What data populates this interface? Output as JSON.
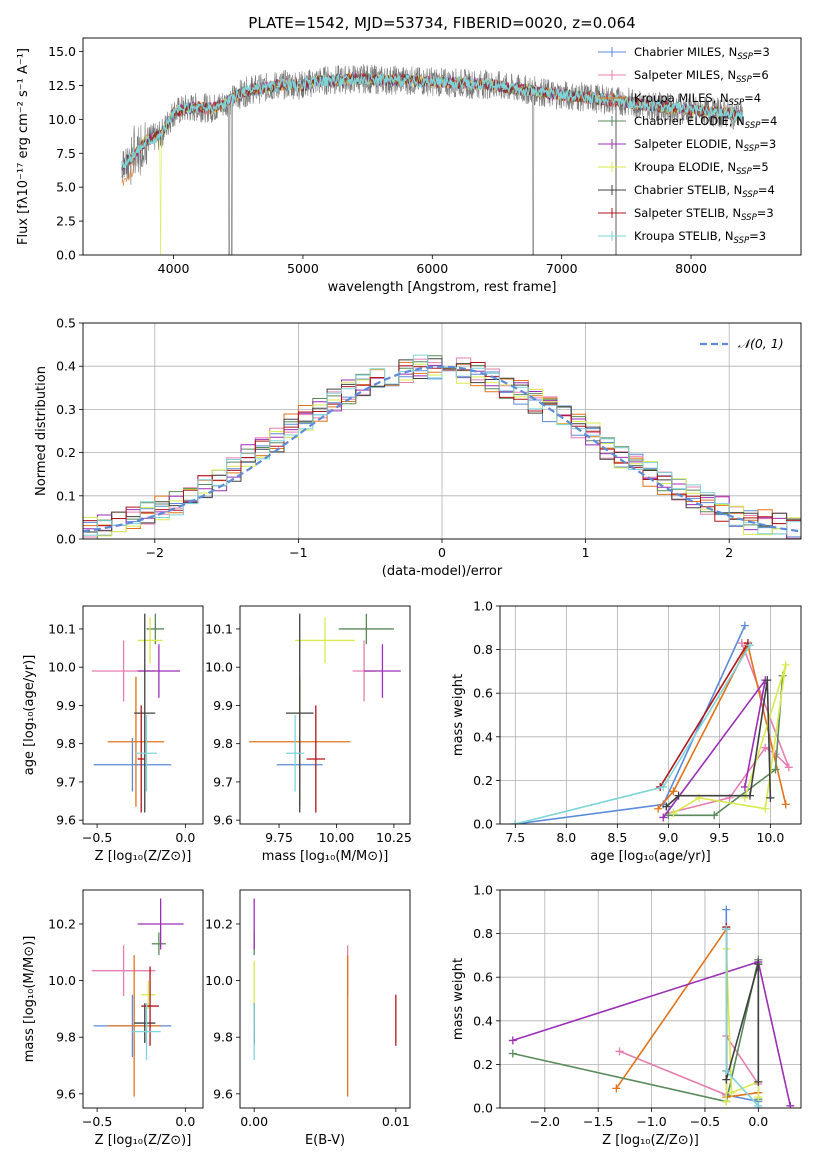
{
  "colors": [
    "#5b8bd9",
    "#e67fb0",
    "#e2731b",
    "#5a8a5a",
    "#9b2fb5",
    "#d9ea4e",
    "#404040",
    "#b0151b",
    "#7fd4da"
  ],
  "chart_data": [
    {
      "id": "spectrum",
      "type": "line",
      "title": "PLATE=1542, MJD=53734, FIBERID=0020, z=0.064",
      "xlabel": "wavelength [Angstrom, rest frame]",
      "ylabel": "Flux [fλ10⁻¹⁷ erg cm⁻² s⁻¹ A⁻¹]",
      "xlim": [
        3300,
        8850
      ],
      "ylim": [
        0,
        16
      ],
      "xticks": [
        "4000",
        "5000",
        "6000",
        "7000",
        "8000"
      ],
      "yticks": [
        "0.0",
        "2.5",
        "5.0",
        "7.5",
        "10.0",
        "12.5",
        "15.0"
      ],
      "x": [
        3600,
        3700,
        3800,
        3900,
        4000,
        4100,
        4200,
        4300,
        4400,
        4500,
        4600,
        4700,
        4800,
        4900,
        5000,
        5100,
        5200,
        5300,
        5400,
        5500,
        5600,
        5700,
        5800,
        5900,
        6000,
        6100,
        6200,
        6300,
        6400,
        6500,
        6600,
        6700,
        6800,
        6900,
        7000,
        7100,
        7200,
        7300,
        7400,
        7500,
        7600,
        7700,
        7800,
        7900,
        8000,
        8100,
        8200,
        8300,
        8400
      ],
      "y": [
        6.5,
        7.5,
        8.5,
        8.8,
        10.5,
        10.8,
        10.9,
        10.8,
        11.2,
        11.8,
        12.2,
        12.3,
        12.5,
        12.6,
        12.5,
        12.8,
        12.9,
        12.9,
        13.0,
        13.0,
        12.9,
        12.9,
        12.9,
        12.8,
        12.8,
        12.7,
        12.7,
        12.6,
        12.6,
        12.5,
        12.3,
        12.2,
        12.1,
        11.9,
        11.8,
        11.7,
        11.6,
        11.5,
        11.4,
        11.3,
        11.1,
        11.0,
        10.9,
        10.8,
        10.7,
        10.6,
        10.5,
        10.4,
        10.3
      ],
      "legend_position": "top-right",
      "legend": [
        {
          "main": "Chabrier MILES, N",
          "sub": "SSP",
          "tail": "=3"
        },
        {
          "main": "Salpeter MILES, N",
          "sub": "SSP",
          "tail": "=6"
        },
        {
          "main": "Kroupa MILES, N",
          "sub": "SSP",
          "tail": "=4"
        },
        {
          "main": "Chabrier ELODIE, N",
          "sub": "SSP",
          "tail": "=4"
        },
        {
          "main": "Salpeter ELODIE, N",
          "sub": "SSP",
          "tail": "=3"
        },
        {
          "main": "Kroupa ELODIE, N",
          "sub": "SSP",
          "tail": "=5"
        },
        {
          "main": "Chabrier STELIB, N",
          "sub": "SSP",
          "tail": "=4"
        },
        {
          "main": "Salpeter STELIB, N",
          "sub": "SSP",
          "tail": "=3"
        },
        {
          "main": "Kroupa STELIB, N",
          "sub": "SSP",
          "tail": "=3"
        }
      ]
    },
    {
      "id": "residuals",
      "type": "histogram",
      "xlabel": "(data-model)/error",
      "ylabel": "Normed distribution",
      "xlim": [
        -2.5,
        2.5
      ],
      "ylim": [
        0,
        0.5
      ],
      "xticks": [
        "−2",
        "−1",
        "0",
        "1",
        "2"
      ],
      "yticks": [
        "0.0",
        "0.1",
        "0.2",
        "0.3",
        "0.4",
        "0.5"
      ],
      "grid": true,
      "bin_width": 0.1,
      "bin_start": -2.5,
      "histogram": [
        0.02,
        0.03,
        0.04,
        0.05,
        0.06,
        0.07,
        0.08,
        0.1,
        0.12,
        0.14,
        0.16,
        0.19,
        0.21,
        0.23,
        0.26,
        0.28,
        0.3,
        0.32,
        0.34,
        0.36,
        0.37,
        0.38,
        0.39,
        0.4,
        0.4,
        0.39,
        0.39,
        0.38,
        0.37,
        0.35,
        0.34,
        0.32,
        0.3,
        0.28,
        0.26,
        0.24,
        0.21,
        0.19,
        0.17,
        0.15,
        0.13,
        0.11,
        0.1,
        0.08,
        0.07,
        0.05,
        0.04,
        0.04,
        0.03,
        0.02
      ],
      "legend": "𝒩(0, 1)",
      "legend_position": "top-right"
    },
    {
      "id": "age-vs-z",
      "type": "errorbar",
      "xlabel": "Z [log₁₀(Z/Z⊙)]",
      "ylabel": "age  [log₁₀(age/yr)]",
      "xlim": [
        -0.58,
        0.1
      ],
      "ylim": [
        9.59,
        10.16
      ],
      "xticks": [
        "−0.5",
        "0.0"
      ],
      "yticks": [
        "9.6",
        "9.7",
        "9.8",
        "9.9",
        "10.0",
        "10.1"
      ],
      "points": [
        {
          "x": -0.3,
          "y": 9.745,
          "xerr": 0.22,
          "yerr": 0.07
        },
        {
          "x": -0.35,
          "y": 9.99,
          "xerr": 0.18,
          "yerr": 0.08
        },
        {
          "x": -0.28,
          "y": 9.805,
          "xerr": 0.16,
          "yerr": 0.17
        },
        {
          "x": -0.17,
          "y": 10.1,
          "xerr": 0.05,
          "yerr": 0.04
        },
        {
          "x": -0.15,
          "y": 9.99,
          "xerr": 0.12,
          "yerr": 0.07
        },
        {
          "x": -0.2,
          "y": 10.07,
          "xerr": 0.07,
          "yerr": 0.06
        },
        {
          "x": -0.23,
          "y": 9.88,
          "xerr": 0.06,
          "yerr": 0.26
        },
        {
          "x": -0.25,
          "y": 9.76,
          "xerr": 0.02,
          "yerr": 0.14
        },
        {
          "x": -0.22,
          "y": 9.775,
          "xerr": 0.06,
          "yerr": 0.1
        }
      ]
    },
    {
      "id": "age-vs-mass",
      "type": "errorbar",
      "xlabel": "mass [log₁₀(M/M⊙)]",
      "ylabel": "",
      "xlim": [
        9.58,
        10.32
      ],
      "ylim": [
        9.59,
        10.16
      ],
      "xticks": [
        "9.75",
        "10.00",
        "10.25"
      ],
      "yticks": [
        "9.6",
        "9.7",
        "9.8",
        "9.9",
        "10.0",
        "10.1"
      ],
      "points": [
        {
          "x": 9.84,
          "y": 9.745,
          "xerr": 0.1,
          "yerr": 0.07
        },
        {
          "x": 10.12,
          "y": 9.99,
          "xerr": 0.05,
          "yerr": 0.08
        },
        {
          "x": 9.84,
          "y": 9.805,
          "xerr": 0.22,
          "yerr": 0.17
        },
        {
          "x": 10.13,
          "y": 10.1,
          "xerr": 0.12,
          "yerr": 0.04
        },
        {
          "x": 10.2,
          "y": 9.99,
          "xerr": 0.08,
          "yerr": 0.07
        },
        {
          "x": 9.95,
          "y": 10.07,
          "xerr": 0.13,
          "yerr": 0.06
        },
        {
          "x": 9.84,
          "y": 9.88,
          "xerr": 0.06,
          "yerr": 0.26
        },
        {
          "x": 9.91,
          "y": 9.76,
          "xerr": 0.04,
          "yerr": 0.14
        },
        {
          "x": 9.82,
          "y": 9.775,
          "xerr": 0.04,
          "yerr": 0.1
        }
      ]
    },
    {
      "id": "weight-vs-age",
      "type": "line",
      "xlabel": "age  [log₁₀(age/yr)]",
      "ylabel": "mass weight",
      "xlim": [
        7.35,
        10.3
      ],
      "ylim": [
        0,
        1
      ],
      "xticks": [
        "7.5",
        "8.0",
        "8.5",
        "9.0",
        "9.5",
        "10.0"
      ],
      "yticks": [
        "0.0",
        "0.2",
        "0.4",
        "0.6",
        "0.8",
        "1.0"
      ],
      "grid": true,
      "series": [
        {
          "ages": [
            7.5,
            8.95,
            9.75
          ],
          "weights": [
            0.0,
            0.09,
            0.91
          ]
        },
        {
          "ages": [
            9.0,
            9.6,
            9.95,
            10.05,
            10.18,
            9.72
          ],
          "weights": [
            0.05,
            0.12,
            0.35,
            0.32,
            0.26,
            0.83
          ]
        },
        {
          "ages": [
            8.9,
            9.05,
            9.78,
            10.15
          ],
          "weights": [
            0.07,
            0.15,
            0.82,
            0.09
          ]
        },
        {
          "ages": [
            9.0,
            9.45,
            10.05,
            10.12
          ],
          "weights": [
            0.04,
            0.04,
            0.25,
            0.68
          ]
        },
        {
          "ages": [
            8.95,
            9.95,
            9.75
          ],
          "weights": [
            0.03,
            0.66,
            0.17
          ]
        },
        {
          "ages": [
            9.05,
            9.3,
            9.95,
            10.15,
            9.75
          ],
          "weights": [
            0.05,
            0.12,
            0.07,
            0.73,
            0.12
          ]
        },
        {
          "ages": [
            8.98,
            9.1,
            9.8,
            9.97,
            10.0
          ],
          "weights": [
            0.08,
            0.13,
            0.13,
            0.66,
            0.12
          ]
        },
        {
          "ages": [
            8.92,
            9.78
          ],
          "weights": [
            0.17,
            0.83
          ]
        },
        {
          "ages": [
            7.5,
            8.95,
            9.8
          ],
          "weights": [
            0.0,
            0.17,
            0.82
          ]
        }
      ]
    },
    {
      "id": "mass-vs-z",
      "type": "errorbar",
      "xlabel": "Z [log₁₀(Z/Z⊙)]",
      "ylabel": "mass [log₁₀(M/M⊙)]",
      "xlim": [
        -0.58,
        0.1
      ],
      "ylim": [
        9.55,
        10.32
      ],
      "xticks": [
        "−0.5",
        "0.0"
      ],
      "yticks": [
        "9.6",
        "9.8",
        "10.0",
        "10.2"
      ],
      "points": [
        {
          "x": -0.3,
          "y": 9.84,
          "xerr": 0.22,
          "yerr": 0.11
        },
        {
          "x": -0.35,
          "y": 10.035,
          "xerr": 0.18,
          "yerr": 0.09
        },
        {
          "x": -0.29,
          "y": 9.84,
          "xerr": 0.15,
          "yerr": 0.25
        },
        {
          "x": -0.15,
          "y": 10.13,
          "xerr": 0.04,
          "yerr": 0.04
        },
        {
          "x": -0.14,
          "y": 10.2,
          "xerr": 0.13,
          "yerr": 0.09
        },
        {
          "x": -0.21,
          "y": 9.95,
          "xerr": 0.04,
          "yerr": 0.05
        },
        {
          "x": -0.23,
          "y": 9.85,
          "xerr": 0.06,
          "yerr": 0.07
        },
        {
          "x": -0.2,
          "y": 9.91,
          "xerr": 0.05,
          "yerr": 0.14
        },
        {
          "x": -0.22,
          "y": 9.82,
          "xerr": 0.08,
          "yerr": 0.1
        }
      ]
    },
    {
      "id": "mass-vs-ebv",
      "type": "errorbar",
      "xlabel": "E(B-V)",
      "ylabel": "",
      "xlim": [
        -0.001,
        0.011
      ],
      "ylim": [
        9.55,
        10.32
      ],
      "xticks": [
        "0.00",
        "0.01"
      ],
      "yticks": [
        "9.6",
        "9.8",
        "10.0",
        "10.2"
      ],
      "points": [
        {
          "x": 0.0,
          "y": 9.84,
          "xerr": 0,
          "yerr": 0.07
        },
        {
          "x": 0.0066,
          "y": 10.035,
          "xerr": 0,
          "yerr": 0.09
        },
        {
          "x": 0.0066,
          "y": 9.84,
          "xerr": 0,
          "yerr": 0.25
        },
        {
          "x": 0.0,
          "y": 10.13,
          "xerr": 0,
          "yerr": 0.04
        },
        {
          "x": 0.0,
          "y": 10.2,
          "xerr": 0,
          "yerr": 0.09
        },
        {
          "x": 0.0,
          "y": 9.95,
          "xerr": 0,
          "yerr": 0.12
        },
        {
          "x": 0.0,
          "y": 9.85,
          "xerr": 0,
          "yerr": 0.07
        },
        {
          "x": 0.01,
          "y": 9.86,
          "xerr": 0,
          "yerr": 0.09
        },
        {
          "x": 0.0,
          "y": 9.82,
          "xerr": 0,
          "yerr": 0.1
        }
      ]
    },
    {
      "id": "weight-vs-z",
      "type": "line",
      "xlabel": "Z [log₁₀(Z/Z⊙)]",
      "ylabel": "mass weight",
      "xlim": [
        -2.42,
        0.4
      ],
      "ylim": [
        0,
        1
      ],
      "xticks": [
        "−2.0",
        "−1.5",
        "−1.0",
        "−0.5",
        "0.0"
      ],
      "yticks": [
        "0.0",
        "0.2",
        "0.4",
        "0.6",
        "0.8",
        "1.0"
      ],
      "grid": true,
      "series": [
        {
          "zs": [
            -0.3,
            -0.3,
            0.0,
            0.0
          ],
          "weights": [
            0.91,
            0.06,
            0.03,
            0.0
          ]
        },
        {
          "zs": [
            -1.3,
            -0.3,
            -0.3,
            0.0,
            0.0
          ],
          "weights": [
            0.26,
            0.06,
            0.33,
            0.11,
            0.07
          ]
        },
        {
          "zs": [
            -1.33,
            -0.3,
            -0.3,
            0.0
          ],
          "weights": [
            0.09,
            0.82,
            0.05,
            0.07
          ]
        },
        {
          "zs": [
            -2.3,
            -0.3,
            0.0,
            0.0
          ],
          "weights": [
            0.25,
            0.03,
            0.68,
            0.04
          ]
        },
        {
          "zs": [
            -2.3,
            0.0,
            0.3
          ],
          "weights": [
            0.31,
            0.67,
            0.01
          ]
        },
        {
          "zs": [
            -0.3,
            -0.3,
            -0.25,
            0.0,
            0.0
          ],
          "weights": [
            0.03,
            0.73,
            0.07,
            0.12,
            0.05
          ]
        },
        {
          "zs": [
            -0.3,
            -0.3,
            0.0,
            0.0
          ],
          "weights": [
            0.82,
            0.13,
            0.66,
            0.12
          ]
        },
        {
          "zs": [
            -0.3,
            -0.3
          ],
          "weights": [
            0.17,
            0.83
          ]
        },
        {
          "zs": [
            -0.3,
            -0.3,
            0.0
          ],
          "weights": [
            0.82,
            0.17,
            0.01
          ]
        }
      ]
    }
  ]
}
